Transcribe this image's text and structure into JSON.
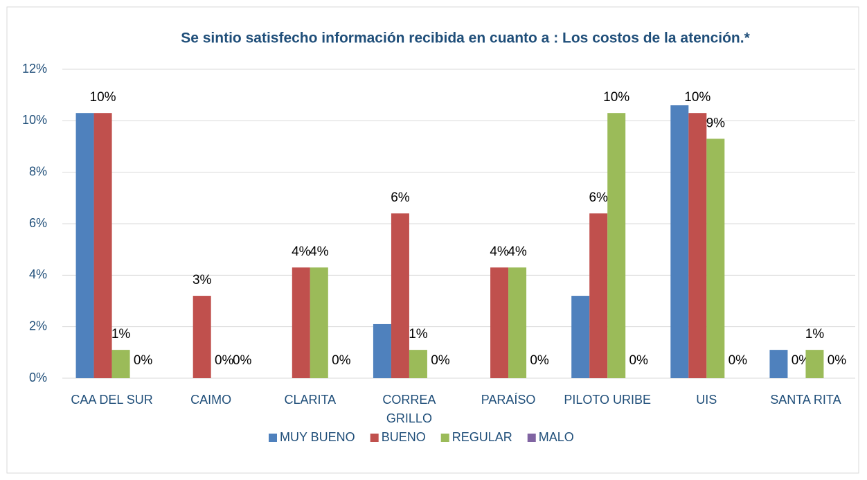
{
  "chart_data": {
    "type": "bar",
    "title": "Se sintio satisfecho información recibida en cuanto a : Los costos de la atención.*",
    "categories": [
      "CAA DEL SUR",
      "CAIMO",
      "CLARITA",
      "CORREA\nGRILLO",
      "PARAÍSO",
      "PILOTO URIBE",
      "UIS",
      "SANTA RITA"
    ],
    "series": [
      {
        "name": "MUY BUENO",
        "color": "#4f81bd",
        "values": [
          10.3,
          0,
          0,
          2.1,
          0,
          3.2,
          10.6,
          1.1
        ]
      },
      {
        "name": "BUENO",
        "color": "#c0504d",
        "values": [
          10.3,
          3.2,
          4.3,
          6.4,
          4.3,
          6.4,
          10.3,
          0
        ],
        "value_labels": [
          "10%",
          "3%",
          "4%",
          "6%",
          "4%",
          "6%",
          "10%",
          "0%"
        ]
      },
      {
        "name": "REGULAR",
        "color": "#9bbb59",
        "values": [
          1.1,
          0,
          4.3,
          1.1,
          4.3,
          10.3,
          9.3,
          1.1
        ],
        "value_labels": [
          "1%",
          "0%",
          "4%",
          "1%",
          "4%",
          "10%",
          "9%",
          "1%"
        ]
      },
      {
        "name": "MALO",
        "color": "#8064a2",
        "values": [
          0,
          0,
          0,
          0,
          0,
          0,
          0,
          0
        ],
        "value_labels": [
          "0%",
          "0%",
          "0%",
          "0%",
          "0%",
          "0%",
          "0%",
          "0%"
        ]
      }
    ],
    "ylim": [
      0,
      12
    ],
    "yticks": [
      {
        "value": 0,
        "label": "0%"
      },
      {
        "value": 2,
        "label": "2%"
      },
      {
        "value": 4,
        "label": "4%"
      },
      {
        "value": 6,
        "label": "6%"
      },
      {
        "value": 8,
        "label": "8%"
      },
      {
        "value": 10,
        "label": "10%"
      },
      {
        "value": 12,
        "label": "12%"
      }
    ],
    "grid": true,
    "legend": "bottom"
  }
}
